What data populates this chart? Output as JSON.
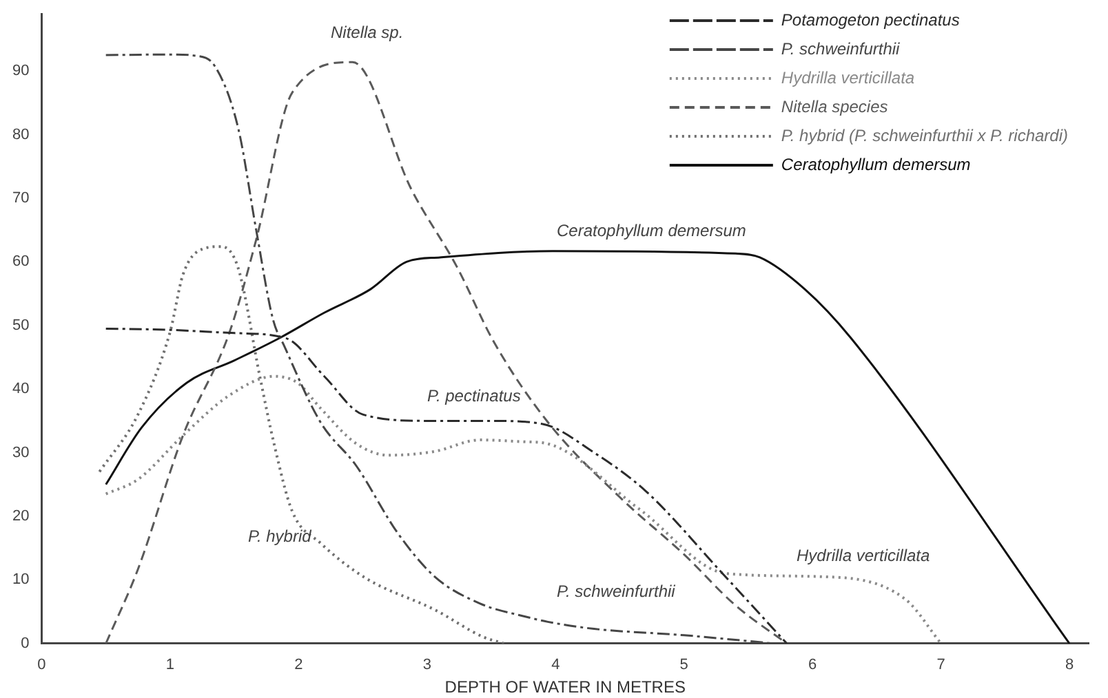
{
  "chart_data": {
    "type": "line",
    "xlabel": "DEPTH OF WATER IN METRES",
    "xlim": [
      0,
      8.15
    ],
    "xticks": [
      0,
      1,
      2,
      3,
      4,
      5,
      6,
      7,
      8
    ],
    "ylim": [
      0,
      99
    ],
    "yticks": [
      0,
      10,
      20,
      30,
      40,
      50,
      60,
      70,
      80,
      90
    ],
    "grid": false,
    "legend": "top right",
    "marker": "none",
    "series": [
      {
        "name": "Potamogeton pectinatus",
        "color": "#2b2b2b",
        "line_style": "dashdot",
        "x": [
          0.5,
          1.0,
          1.5,
          1.9,
          2.2,
          2.5,
          3.0,
          3.5,
          3.9,
          4.3,
          4.7,
          5.3,
          5.8
        ],
        "values": [
          49.5,
          49.3,
          48.8,
          48,
          42,
          36,
          35,
          35,
          34.5,
          30,
          24,
          11,
          0
        ]
      },
      {
        "name": "P. schweinfurthii",
        "color": "#464646",
        "line_style": "dashdot",
        "x": [
          0.5,
          1.0,
          1.2,
          1.35,
          1.53,
          1.67,
          1.8,
          1.89,
          2.17,
          2.45,
          2.77,
          3.06,
          3.41,
          3.77,
          3.94,
          4.3,
          5.0,
          5.7
        ],
        "values": [
          92.5,
          92.6,
          92.4,
          90.7,
          81,
          65,
          51,
          46.7,
          34.8,
          27.9,
          17.4,
          10.5,
          6.3,
          4.2,
          3.4,
          2.3,
          1.3,
          0
        ]
      },
      {
        "name": "Hydrilla verticillata",
        "color": "#8a8a8a",
        "line_style": "dotted",
        "x": [
          0.5,
          0.75,
          1.1,
          1.46,
          1.81,
          1.99,
          2.17,
          2.45,
          2.7,
          3.06,
          3.41,
          3.77,
          3.94,
          4.66,
          5.33,
          6.08,
          6.72,
          7.0
        ],
        "values": [
          23.5,
          25.8,
          32.7,
          39,
          42,
          41,
          37,
          31.4,
          29.6,
          30.2,
          32,
          31.7,
          31.4,
          21,
          11,
          10.5,
          7,
          0
        ]
      },
      {
        "name": "Nitella species",
        "color": "#5a5a5a",
        "line_style": "dashed",
        "x": [
          0.5,
          0.75,
          1.1,
          1.46,
          1.67,
          1.95,
          2.42,
          2.88,
          3.23,
          3.52,
          3.94,
          4.5,
          5.0,
          5.4,
          5.8
        ],
        "values": [
          0,
          11.7,
          32.7,
          48.8,
          63.5,
          86.6,
          91.4,
          71.3,
          59.3,
          47.4,
          34.8,
          23,
          14,
          6,
          0
        ]
      },
      {
        "name": "P. hybrid (P. schweinfurthii x P. richardi)",
        "color": "#707070",
        "line_style": "dotted",
        "x": [
          0.45,
          0.75,
          1.0,
          1.1,
          1.25,
          1.4,
          1.53,
          1.7,
          1.81,
          1.95,
          2.17,
          2.52,
          3.06,
          3.44,
          3.6
        ],
        "values": [
          27,
          36,
          49,
          58,
          62,
          62.4,
          59,
          41.8,
          31.3,
          20.8,
          15.8,
          10.3,
          5.3,
          1,
          0
        ]
      },
      {
        "name": "Ceratophyllum demersum",
        "color": "#111111",
        "line_style": "solid",
        "x": [
          0.5,
          0.78,
          1.13,
          1.5,
          1.85,
          2.2,
          2.56,
          2.84,
          3.1,
          3.98,
          5.4,
          5.59,
          5.94,
          6.3,
          8.0
        ],
        "values": [
          25,
          34,
          41,
          44.5,
          48,
          52,
          55.7,
          60,
          60.7,
          61.7,
          61.3,
          60.7,
          55.7,
          48,
          0
        ]
      }
    ],
    "annotations": [
      "Nitella sp.",
      "Ceratophyllum demersum",
      "P. pectinatus",
      "P. hybrid",
      "P. schweinfurthii",
      "Hydrilla verticillata"
    ]
  }
}
